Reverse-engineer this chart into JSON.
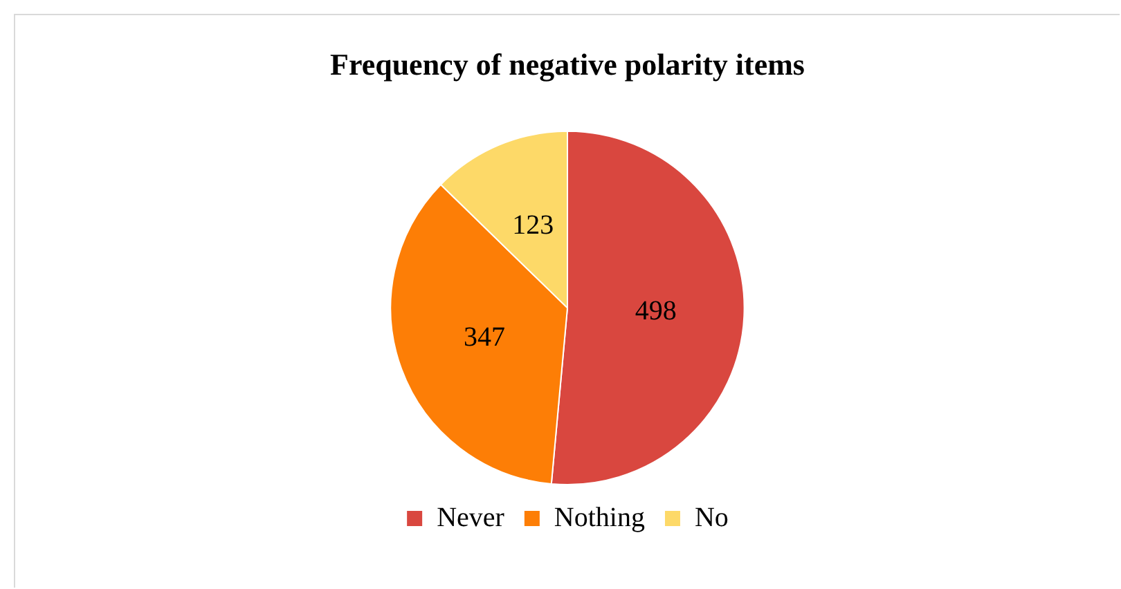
{
  "chart_data": {
    "type": "pie",
    "title": "Frequency of negative polarity items",
    "categories": [
      "Never",
      "Nothing",
      "No"
    ],
    "values": [
      498,
      347,
      123
    ],
    "colors": [
      "#d9473f",
      "#fd7e06",
      "#fdd968"
    ],
    "data_labels": true,
    "legend": "bottom"
  }
}
